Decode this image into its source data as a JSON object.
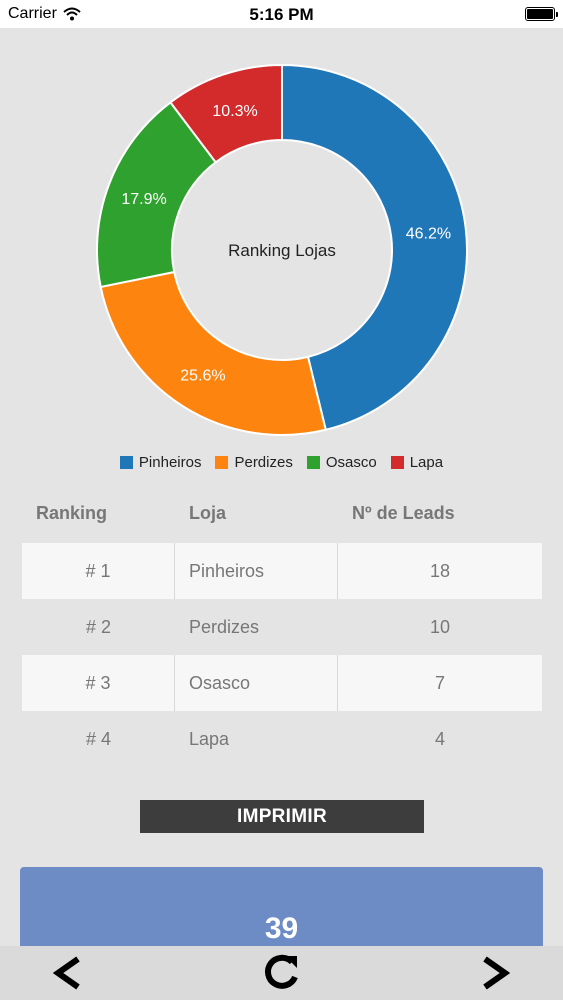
{
  "status_bar": {
    "carrier": "Carrier",
    "time": "5:16 PM"
  },
  "chart_data": {
    "type": "pie",
    "title": "Ranking Lojas",
    "categories": [
      "Pinheiros",
      "Perdizes",
      "Osasco",
      "Lapa"
    ],
    "values": [
      46.2,
      25.6,
      17.9,
      10.3
    ],
    "labels": [
      "46.2%",
      "25.6%",
      "17.9%",
      "10.3%"
    ],
    "colors": [
      "#2077b8",
      "#fd840f",
      "#2fa12e",
      "#d32b2b"
    ],
    "legend_placement": "bottom"
  },
  "table": {
    "headers": [
      "Ranking",
      "Loja",
      "Nº de Leads"
    ],
    "rows": [
      [
        "# 1",
        "Pinheiros",
        "18"
      ],
      [
        "# 2",
        "Perdizes",
        "10"
      ],
      [
        "# 3",
        "Osasco",
        "7"
      ],
      [
        "# 4",
        "Lapa",
        "4"
      ]
    ]
  },
  "print_button": {
    "label": "IMPRIMIR"
  },
  "total_card": {
    "value": "39"
  },
  "toolbar": {
    "back_icon": "chevron-left-icon",
    "refresh_icon": "refresh-icon",
    "forward_icon": "chevron-right-icon"
  }
}
